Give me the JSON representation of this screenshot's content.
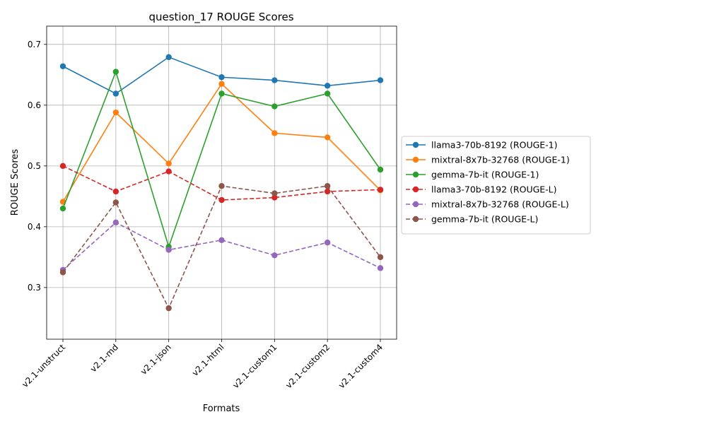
{
  "chart_data": {
    "type": "line",
    "title": "question_17 ROUGE Scores",
    "xlabel": "Formats",
    "ylabel": "ROUGE Scores",
    "categories": [
      "v2.1-unstruct",
      "v2.1-md",
      "v2.1-json",
      "v2.1-html",
      "v2.1-custom1",
      "v2.1-custom2",
      "v2.1-custom4"
    ],
    "ylim": [
      0.215,
      0.73
    ],
    "yticks": [
      "0.3",
      "0.4",
      "0.5",
      "0.6",
      "0.7"
    ],
    "grid": true,
    "legend_position": "outside-right",
    "series": [
      {
        "name": "llama3-70b-8192 (ROUGE-1)",
        "color": "#1f77b4",
        "dash": "solid",
        "values": [
          0.664,
          0.619,
          0.679,
          0.646,
          0.641,
          0.632,
          0.641
        ]
      },
      {
        "name": "mixtral-8x7b-32768 (ROUGE-1)",
        "color": "#ff7f0e",
        "dash": "solid",
        "values": [
          0.441,
          0.588,
          0.504,
          0.635,
          0.554,
          0.547,
          0.46
        ]
      },
      {
        "name": "gemma-7b-it (ROUGE-1)",
        "color": "#2ca02c",
        "dash": "solid",
        "values": [
          0.43,
          0.655,
          0.367,
          0.619,
          0.598,
          0.619,
          0.494
        ]
      },
      {
        "name": "llama3-70b-8192 (ROUGE-L)",
        "color": "#d62728",
        "dash": "dashed",
        "values": [
          0.5,
          0.458,
          0.491,
          0.444,
          0.448,
          0.458,
          0.461
        ]
      },
      {
        "name": "mixtral-8x7b-32768 (ROUGE-L)",
        "color": "#9467bd",
        "dash": "dashed",
        "values": [
          0.329,
          0.407,
          0.362,
          0.378,
          0.353,
          0.374,
          0.332
        ]
      },
      {
        "name": "gemma-7b-it (ROUGE-L)",
        "color": "#8c564b",
        "dash": "dashed",
        "values": [
          0.325,
          0.44,
          0.266,
          0.467,
          0.455,
          0.467,
          0.35
        ]
      }
    ]
  }
}
